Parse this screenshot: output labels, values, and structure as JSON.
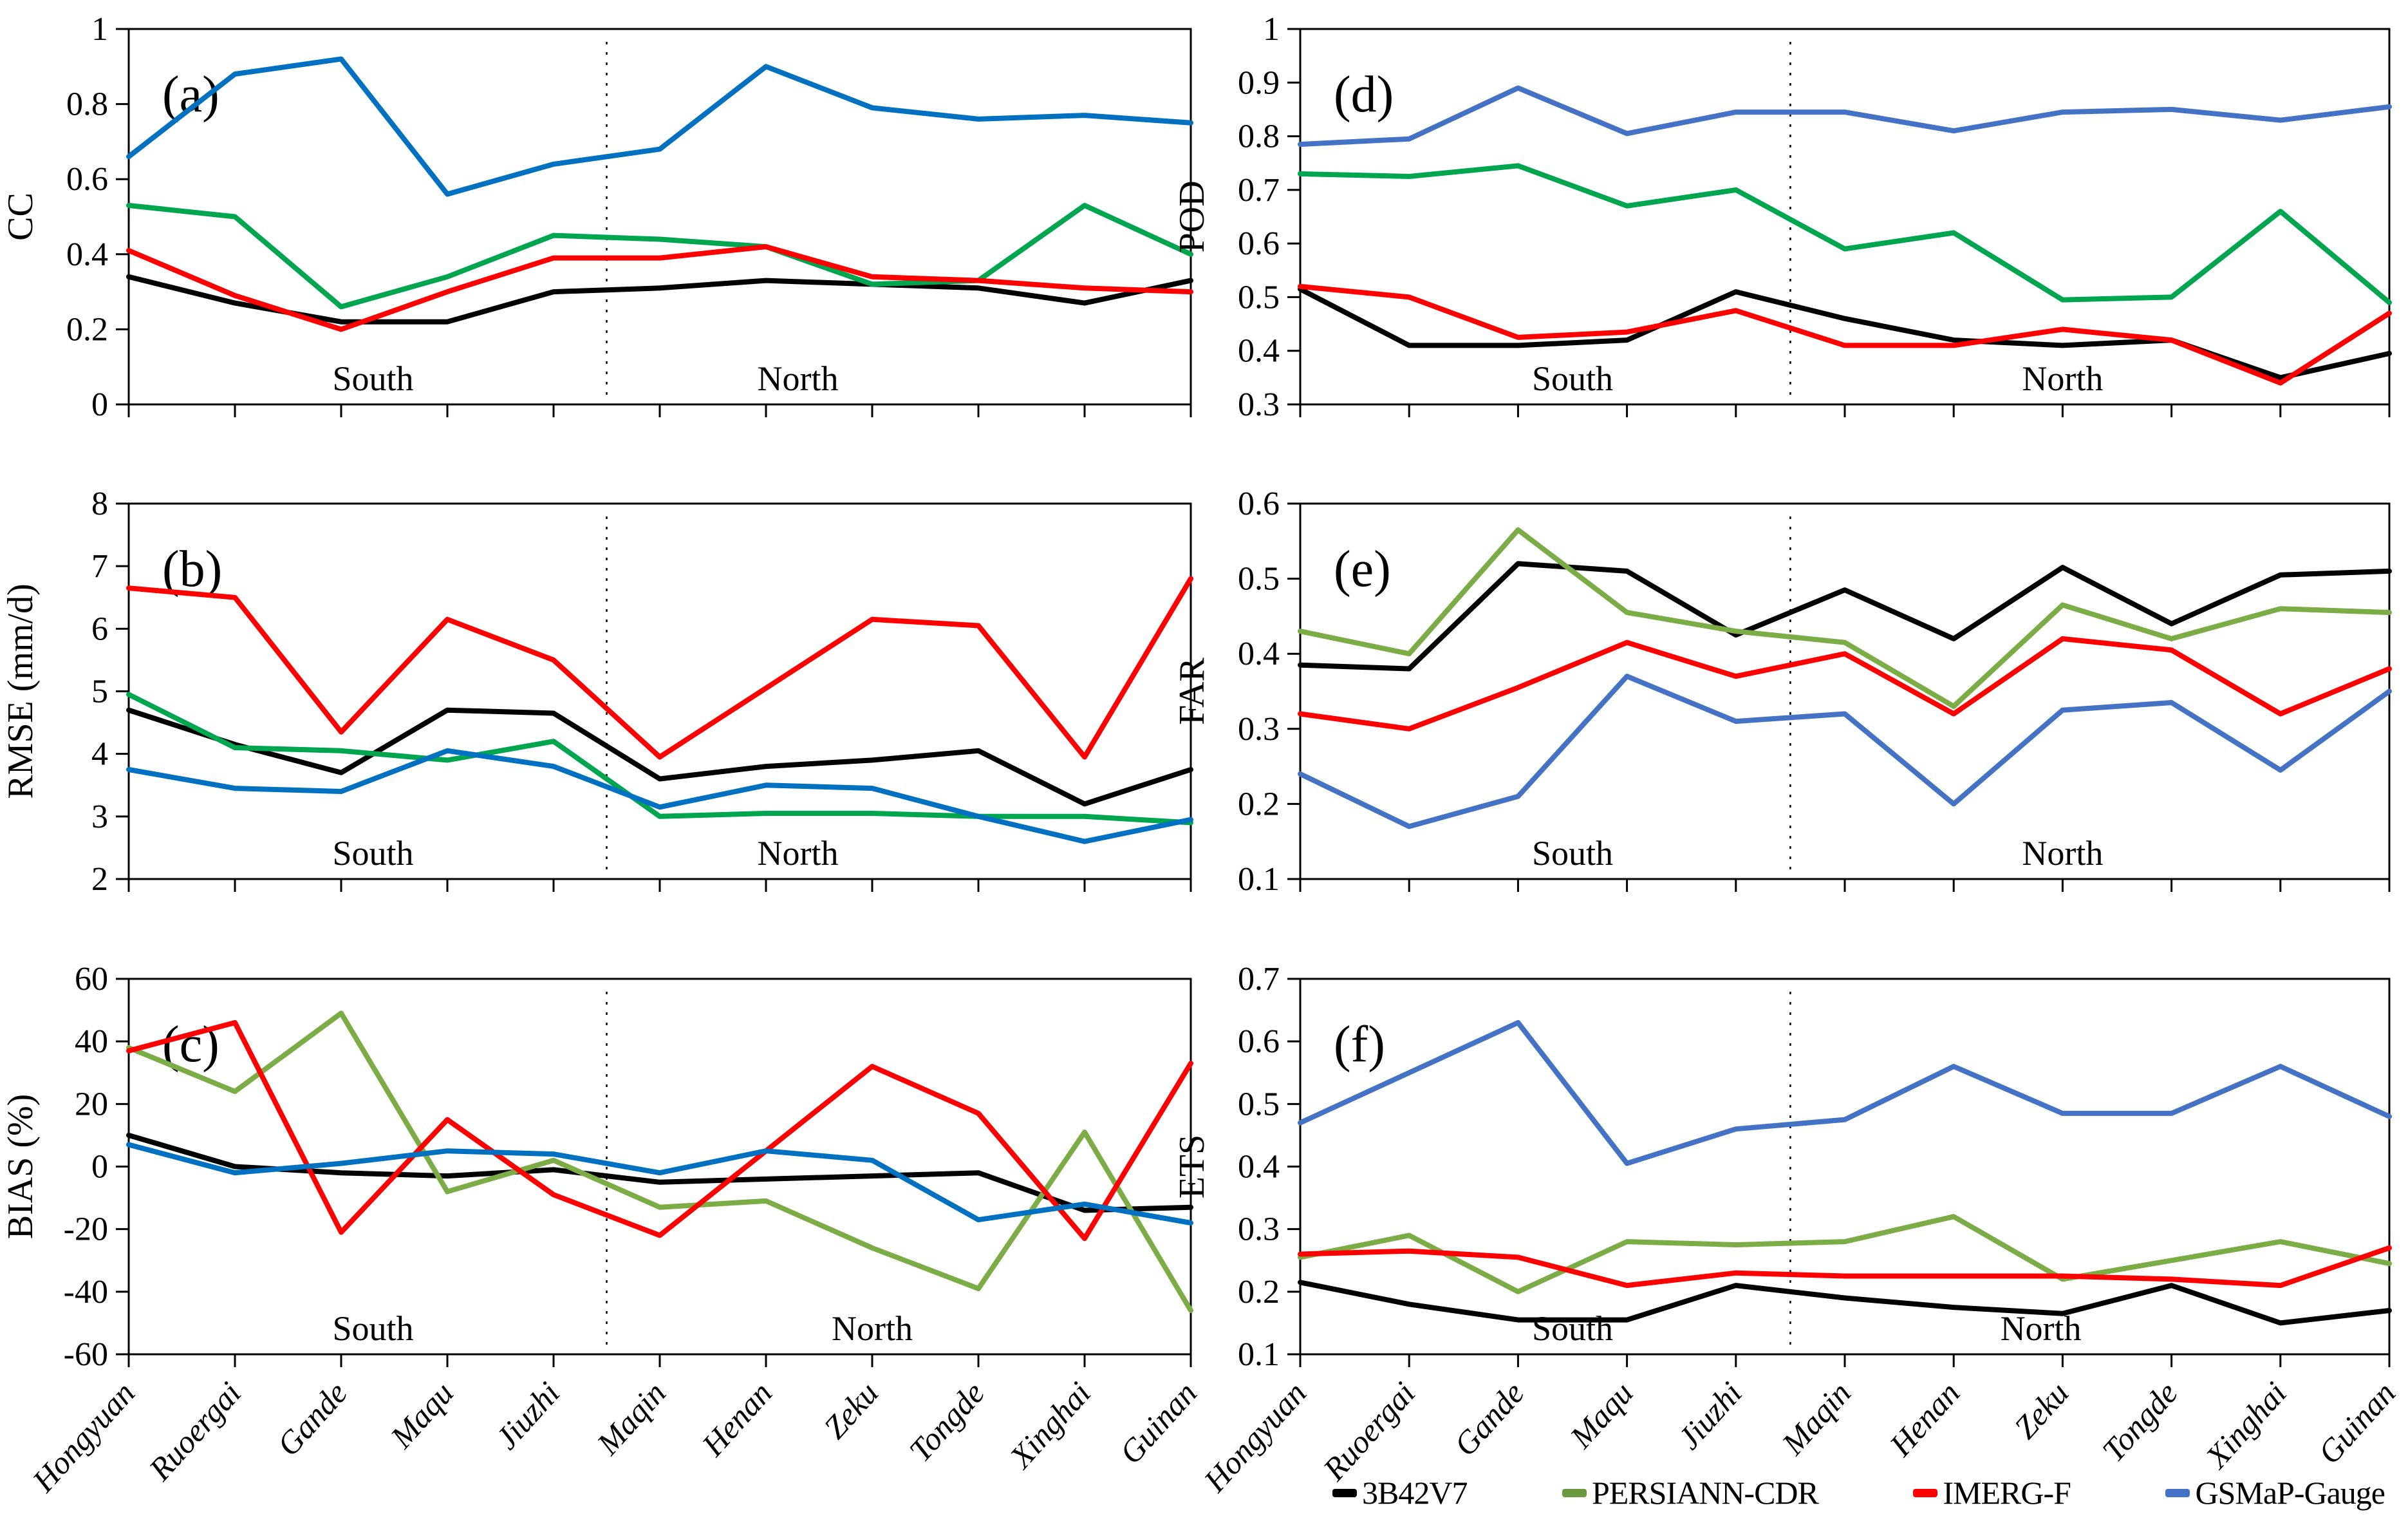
{
  "figure_title": "",
  "stations": [
    "Hongyuan",
    "Ruoergai",
    "Gande",
    "Maqu",
    "Jiuzhi",
    "Maqin",
    "Henan",
    "Zeku",
    "Tongde",
    "Xinghai",
    "Guinan"
  ],
  "annotations": {
    "south": "South",
    "north": "North"
  },
  "divider": {
    "between": [
      "Jiuzhi",
      "Maqin"
    ],
    "style": "dashed"
  },
  "legend": {
    "items": [
      {
        "label": "3B42V7",
        "color": "#000000"
      },
      {
        "label": "PERSIANN-CDR",
        "color": "#6A9A3F"
      },
      {
        "label": "IMERG-F",
        "color": "#FF0000"
      },
      {
        "label": "GSMaP-Gauge",
        "color": "#4472C4"
      }
    ]
  },
  "chart_data": [
    {
      "id": "a",
      "panel_label": "(a)",
      "type": "line",
      "ylabel": "CC",
      "ylim": [
        0,
        1
      ],
      "yticks": [
        0,
        0.2,
        0.4,
        0.6,
        0.8,
        1
      ],
      "grid": false,
      "south_frac": 0.23,
      "north_frac": 0.63,
      "series": [
        {
          "name": "3B42V7",
          "color": "#000000",
          "values": [
            0.34,
            0.27,
            0.22,
            0.22,
            0.3,
            0.31,
            0.33,
            0.32,
            0.31,
            0.27,
            0.33
          ]
        },
        {
          "name": "PERSIANN-CDR",
          "color": "#00A550",
          "values": [
            0.53,
            0.5,
            0.26,
            0.34,
            0.45,
            0.44,
            0.42,
            0.32,
            0.33,
            0.53,
            0.4
          ]
        },
        {
          "name": "IMERG-F",
          "color": "#FF0000",
          "values": [
            0.41,
            0.29,
            0.2,
            0.3,
            0.39,
            0.39,
            0.42,
            0.34,
            0.33,
            0.31,
            0.3
          ]
        },
        {
          "name": "GSMaP-Gauge",
          "color": "#0070C0",
          "values": [
            0.66,
            0.88,
            0.92,
            0.56,
            0.64,
            0.68,
            0.9,
            0.79,
            0.76,
            0.77,
            0.75
          ]
        }
      ]
    },
    {
      "id": "b",
      "panel_label": "(b)",
      "type": "line",
      "ylabel": "RMSE  (mm/d)",
      "ylim": [
        2,
        8
      ],
      "yticks": [
        2,
        3,
        4,
        5,
        6,
        7,
        8
      ],
      "grid": false,
      "south_frac": 0.23,
      "north_frac": 0.63,
      "series": [
        {
          "name": "3B42V7",
          "color": "#000000",
          "values": [
            4.7,
            4.15,
            3.7,
            4.7,
            4.65,
            3.6,
            3.8,
            3.9,
            4.05,
            3.2,
            3.75
          ]
        },
        {
          "name": "PERSIANN-CDR",
          "color": "#00A550",
          "values": [
            4.95,
            4.1,
            4.05,
            3.9,
            4.2,
            3.0,
            3.05,
            3.05,
            3.0,
            3.0,
            2.9
          ]
        },
        {
          "name": "IMERG-F",
          "color": "#FF0000",
          "values": [
            6.65,
            6.5,
            4.35,
            6.15,
            5.5,
            3.95,
            5.05,
            6.15,
            6.05,
            3.95,
            6.8
          ]
        },
        {
          "name": "GSMaP-Gauge",
          "color": "#0070C0",
          "values": [
            3.75,
            3.45,
            3.4,
            4.05,
            3.8,
            3.15,
            3.5,
            3.45,
            3.0,
            2.6,
            2.95
          ]
        }
      ]
    },
    {
      "id": "c",
      "panel_label": "(c)",
      "type": "line",
      "ylabel": "BIAS  (%)",
      "ylim": [
        -60,
        60
      ],
      "yticks": [
        -60,
        -40,
        -20,
        0,
        20,
        40,
        60
      ],
      "grid": false,
      "south_frac": 0.23,
      "north_frac": 0.7,
      "series": [
        {
          "name": "3B42V7",
          "color": "#000000",
          "values": [
            10,
            0,
            -2,
            -3,
            -1,
            -5,
            -4,
            -3,
            -2,
            -14,
            -13
          ]
        },
        {
          "name": "PERSIANN-CDR",
          "color": "#7CAC46",
          "values": [
            38,
            24,
            49,
            -8,
            2,
            -13,
            -11,
            -26,
            -39,
            11,
            -46
          ]
        },
        {
          "name": "IMERG-F",
          "color": "#FF0000",
          "values": [
            37,
            46,
            -21,
            15,
            -9,
            -22,
            5,
            32,
            17,
            -23,
            33
          ]
        },
        {
          "name": "GSMaP-Gauge",
          "color": "#0070C0",
          "values": [
            7,
            -2,
            1,
            5,
            4,
            -2,
            5,
            2,
            -17,
            -12,
            -18
          ]
        }
      ]
    },
    {
      "id": "d",
      "panel_label": "(d)",
      "type": "line",
      "ylabel": "POD",
      "ylim": [
        0.3,
        1
      ],
      "yticks": [
        0.3,
        0.4,
        0.5,
        0.6,
        0.7,
        0.8,
        0.9,
        1
      ],
      "grid": false,
      "south_frac": 0.25,
      "north_frac": 0.7,
      "series": [
        {
          "name": "3B42V7",
          "color": "#000000",
          "values": [
            0.515,
            0.41,
            0.41,
            0.42,
            0.51,
            0.46,
            0.42,
            0.41,
            0.42,
            0.35,
            0.395
          ]
        },
        {
          "name": "PERSIANN-CDR",
          "color": "#00A550",
          "values": [
            0.73,
            0.725,
            0.745,
            0.67,
            0.7,
            0.59,
            0.62,
            0.495,
            0.5,
            0.66,
            0.49
          ]
        },
        {
          "name": "IMERG-F",
          "color": "#FF0000",
          "values": [
            0.52,
            0.5,
            0.425,
            0.435,
            0.475,
            0.41,
            0.41,
            0.44,
            0.42,
            0.34,
            0.47
          ]
        },
        {
          "name": "GSMaP-Gauge",
          "color": "#4472C4",
          "values": [
            0.785,
            0.795,
            0.89,
            0.805,
            0.845,
            0.845,
            0.81,
            0.845,
            0.85,
            0.83,
            0.855
          ]
        }
      ]
    },
    {
      "id": "e",
      "panel_label": "(e)",
      "type": "line",
      "ylabel": "FAR",
      "ylim": [
        0.1,
        0.6
      ],
      "yticks": [
        0.1,
        0.2,
        0.3,
        0.4,
        0.5,
        0.6
      ],
      "grid": false,
      "south_frac": 0.25,
      "north_frac": 0.7,
      "series": [
        {
          "name": "3B42V7",
          "color": "#000000",
          "values": [
            0.385,
            0.38,
            0.52,
            0.51,
            0.425,
            0.485,
            0.42,
            0.515,
            0.44,
            0.505,
            0.51
          ]
        },
        {
          "name": "PERSIANN-CDR",
          "color": "#7CAC46",
          "values": [
            0.43,
            0.4,
            0.565,
            0.455,
            0.43,
            0.415,
            0.33,
            0.465,
            0.42,
            0.46,
            0.455
          ]
        },
        {
          "name": "IMERG-F",
          "color": "#FF0000",
          "values": [
            0.32,
            0.3,
            0.355,
            0.415,
            0.37,
            0.4,
            0.32,
            0.42,
            0.405,
            0.32,
            0.38
          ]
        },
        {
          "name": "GSMaP-Gauge",
          "color": "#4472C4",
          "values": [
            0.24,
            0.17,
            0.21,
            0.37,
            0.31,
            0.32,
            0.2,
            0.325,
            0.335,
            0.245,
            0.35
          ]
        }
      ]
    },
    {
      "id": "f",
      "panel_label": "(f)",
      "type": "line",
      "ylabel": "ETS",
      "ylim": [
        0.1,
        0.7
      ],
      "yticks": [
        0.1,
        0.2,
        0.3,
        0.4,
        0.5,
        0.6,
        0.7
      ],
      "grid": false,
      "south_frac": 0.25,
      "north_frac": 0.68,
      "series": [
        {
          "name": "3B42V7",
          "color": "#000000",
          "values": [
            0.215,
            0.18,
            0.155,
            0.155,
            0.21,
            0.19,
            0.175,
            0.165,
            0.21,
            0.15,
            0.17
          ]
        },
        {
          "name": "PERSIANN-CDR",
          "color": "#7CAC46",
          "values": [
            0.255,
            0.29,
            0.2,
            0.28,
            0.275,
            0.28,
            0.32,
            0.22,
            0.25,
            0.28,
            0.245
          ]
        },
        {
          "name": "IMERG-F",
          "color": "#FF0000",
          "values": [
            0.26,
            0.265,
            0.255,
            0.21,
            0.23,
            0.225,
            0.225,
            0.225,
            0.22,
            0.21,
            0.27
          ]
        },
        {
          "name": "GSMaP-Gauge",
          "color": "#4472C4",
          "values": [
            0.47,
            0.55,
            0.63,
            0.405,
            0.46,
            0.475,
            0.56,
            0.485,
            0.485,
            0.56,
            0.48
          ]
        }
      ]
    }
  ]
}
